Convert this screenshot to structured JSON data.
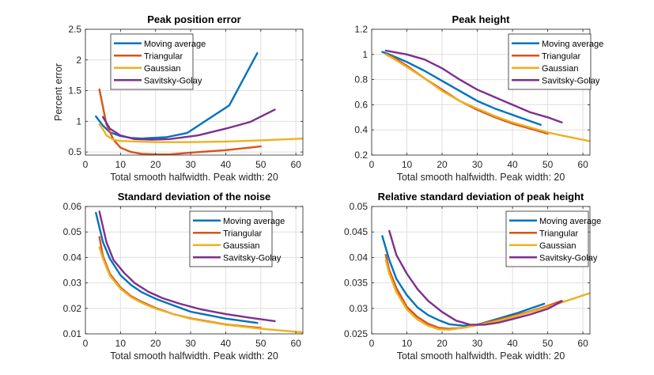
{
  "chart_data": [
    {
      "type": "line",
      "title": "Peak position error",
      "xlabel": "Total smooth halfwidth.    Peak width: 20",
      "ylabel": "Percent error",
      "xlim": [
        0,
        62
      ],
      "ylim": [
        0.45,
        2.5
      ],
      "xticks": [
        0,
        10,
        20,
        30,
        40,
        50,
        60
      ],
      "yticks": [
        0.5,
        1,
        1.5,
        2,
        2.5
      ],
      "ytick_labels": [
        "0.5",
        "1",
        "1.5",
        "2",
        "2.5"
      ],
      "grid": true,
      "legend": "top-left",
      "series": [
        {
          "name": "Moving average",
          "x": [
            3,
            5,
            7,
            10,
            13,
            16,
            19,
            23,
            29,
            41,
            49
          ],
          "y": [
            1.08,
            0.93,
            0.82,
            0.76,
            0.73,
            0.72,
            0.73,
            0.74,
            0.81,
            1.26,
            2.11
          ]
        },
        {
          "name": "Triangular",
          "x": [
            4,
            6,
            8,
            10,
            13,
            16,
            20,
            24,
            30,
            40,
            50
          ],
          "y": [
            1.52,
            0.95,
            0.7,
            0.57,
            0.5,
            0.47,
            0.46,
            0.46,
            0.49,
            0.53,
            0.59
          ]
        },
        {
          "name": "Gaussian",
          "x": [
            4,
            5,
            6,
            8,
            10,
            15,
            20,
            30,
            40,
            50,
            62
          ],
          "y": [
            0.95,
            0.87,
            0.77,
            0.7,
            0.68,
            0.67,
            0.66,
            0.66,
            0.67,
            0.69,
            0.72
          ]
        },
        {
          "name": "Savitsky-Golay",
          "x": [
            5,
            7,
            10,
            14,
            19,
            24,
            32,
            40,
            47,
            54
          ],
          "y": [
            1.07,
            0.88,
            0.77,
            0.71,
            0.7,
            0.71,
            0.77,
            0.88,
            0.99,
            1.19
          ]
        }
      ]
    },
    {
      "type": "line",
      "title": "Peak height",
      "xlabel": "Total smooth halfwidth.    Peak width: 20",
      "ylabel": "",
      "xlim": [
        0,
        62
      ],
      "ylim": [
        0.2,
        1.2
      ],
      "xticks": [
        0,
        10,
        20,
        30,
        40,
        50,
        60
      ],
      "yticks": [
        0.2,
        0.4,
        0.6,
        0.8,
        1,
        1.2
      ],
      "ytick_labels": [
        "0.2",
        "0.4",
        "0.6",
        "0.8",
        "1",
        "1.2"
      ],
      "grid": true,
      "legend": "top-right",
      "series": [
        {
          "name": "Moving average",
          "x": [
            3,
            5,
            10,
            15,
            20,
            25,
            30,
            35,
            41,
            48
          ],
          "y": [
            1.02,
            1.0,
            0.94,
            0.87,
            0.79,
            0.71,
            0.63,
            0.57,
            0.51,
            0.44
          ]
        },
        {
          "name": "Triangular",
          "x": [
            4,
            6,
            10,
            15,
            20,
            25,
            30,
            35,
            40,
            45,
            50
          ],
          "y": [
            1.0,
            0.98,
            0.91,
            0.81,
            0.72,
            0.63,
            0.56,
            0.5,
            0.45,
            0.41,
            0.37
          ]
        },
        {
          "name": "Gaussian",
          "x": [
            4,
            6,
            10,
            15,
            20,
            25,
            30,
            35,
            40,
            45,
            50,
            55,
            62
          ],
          "y": [
            1.0,
            0.97,
            0.9,
            0.81,
            0.71,
            0.63,
            0.57,
            0.51,
            0.46,
            0.42,
            0.38,
            0.35,
            0.31
          ]
        },
        {
          "name": "Savitsky-Golay",
          "x": [
            4,
            6,
            10,
            15,
            20,
            25,
            30,
            35,
            40,
            45,
            50,
            54
          ],
          "y": [
            1.03,
            1.02,
            1.0,
            0.96,
            0.89,
            0.8,
            0.72,
            0.66,
            0.6,
            0.54,
            0.5,
            0.46
          ]
        }
      ]
    },
    {
      "type": "line",
      "title": "Standard deviation of the noise",
      "xlabel": "Total smooth halfwidth.    Peak width: 20",
      "ylabel": "",
      "xlim": [
        0,
        62
      ],
      "ylim": [
        0.01,
        0.06
      ],
      "xticks": [
        0,
        10,
        20,
        30,
        40,
        50,
        60
      ],
      "yticks": [
        0.01,
        0.02,
        0.03,
        0.04,
        0.05,
        0.06
      ],
      "ytick_labels": [
        "0.01",
        "0.02",
        "0.03",
        "0.04",
        "0.05",
        "0.06"
      ],
      "grid": true,
      "legend": "top-right",
      "series": [
        {
          "name": "Moving average",
          "x": [
            3,
            5,
            7,
            10,
            13,
            16,
            20,
            25,
            30,
            40,
            49
          ],
          "y": [
            0.0575,
            0.046,
            0.0395,
            0.033,
            0.0292,
            0.0264,
            0.0238,
            0.0212,
            0.0187,
            0.016,
            0.0143
          ]
        },
        {
          "name": "Triangular",
          "x": [
            4,
            5,
            7,
            10,
            13,
            16,
            20,
            25,
            30,
            40,
            50
          ],
          "y": [
            0.048,
            0.0405,
            0.0335,
            0.0282,
            0.0248,
            0.0226,
            0.0202,
            0.0178,
            0.0161,
            0.0137,
            0.0123
          ]
        },
        {
          "name": "Gaussian",
          "x": [
            4,
            5,
            7,
            10,
            13,
            16,
            20,
            25,
            30,
            40,
            50,
            62
          ],
          "y": [
            0.044,
            0.0395,
            0.0328,
            0.0277,
            0.0244,
            0.0222,
            0.0199,
            0.0178,
            0.0159,
            0.0136,
            0.012,
            0.0106
          ]
        },
        {
          "name": "Savitsky-Golay",
          "x": [
            4,
            6,
            8,
            11,
            14,
            18,
            22,
            27,
            33,
            40,
            47,
            54
          ],
          "y": [
            0.058,
            0.046,
            0.039,
            0.034,
            0.03,
            0.0265,
            0.024,
            0.0218,
            0.0196,
            0.0178,
            0.0163,
            0.015
          ]
        }
      ]
    },
    {
      "type": "line",
      "title": "Relative standard deviation of peak height",
      "xlabel": "Total smooth halfwidth.    Peak width: 20",
      "ylabel": "",
      "xlim": [
        0,
        62
      ],
      "ylim": [
        0.025,
        0.05
      ],
      "xticks": [
        0,
        10,
        20,
        30,
        40,
        50,
        60
      ],
      "yticks": [
        0.025,
        0.03,
        0.035,
        0.04,
        0.045,
        0.05
      ],
      "ytick_labels": [
        "0.025",
        "0.03",
        "0.035",
        "0.04",
        "0.045",
        "0.05"
      ],
      "grid": true,
      "legend": "top-right",
      "series": [
        {
          "name": "Moving average",
          "x": [
            3,
            5,
            7,
            10,
            13,
            16,
            19,
            22,
            26,
            30,
            35,
            41,
            49
          ],
          "y": [
            0.0442,
            0.0395,
            0.0358,
            0.0326,
            0.0302,
            0.0287,
            0.0277,
            0.0269,
            0.0266,
            0.0268,
            0.0278,
            0.029,
            0.0309
          ]
        },
        {
          "name": "Triangular",
          "x": [
            4,
            5,
            7,
            10,
            13,
            16,
            19,
            22,
            26,
            30,
            35,
            40,
            45,
            50,
            54
          ],
          "y": [
            0.0405,
            0.0375,
            0.034,
            0.0303,
            0.0283,
            0.027,
            0.0262,
            0.026,
            0.0262,
            0.0268,
            0.0276,
            0.0285,
            0.0294,
            0.0305,
            0.0315
          ]
        },
        {
          "name": "Gaussian",
          "x": [
            4,
            5,
            7,
            10,
            13,
            16,
            19,
            22,
            26,
            30,
            35,
            40,
            45,
            50,
            55,
            62
          ],
          "y": [
            0.0395,
            0.0368,
            0.0332,
            0.0298,
            0.0278,
            0.0266,
            0.0259,
            0.0258,
            0.0262,
            0.0267,
            0.0274,
            0.0283,
            0.0293,
            0.0303,
            0.0314,
            0.033
          ]
        },
        {
          "name": "Savitsky-Golay",
          "x": [
            5,
            7,
            10,
            13,
            16,
            20,
            24,
            28,
            32,
            36,
            40,
            45,
            50,
            54
          ],
          "y": [
            0.0452,
            0.0405,
            0.0368,
            0.0338,
            0.0315,
            0.0293,
            0.0276,
            0.0268,
            0.0268,
            0.0272,
            0.0279,
            0.0288,
            0.0299,
            0.0314
          ]
        }
      ]
    }
  ],
  "colors": {
    "Moving average": "#0072BD",
    "Triangular": "#D95319",
    "Gaussian": "#EDB120",
    "Savitsky-Golay": "#7E2F8E",
    "axis": "#262626",
    "grid": "#DFDFDF"
  }
}
